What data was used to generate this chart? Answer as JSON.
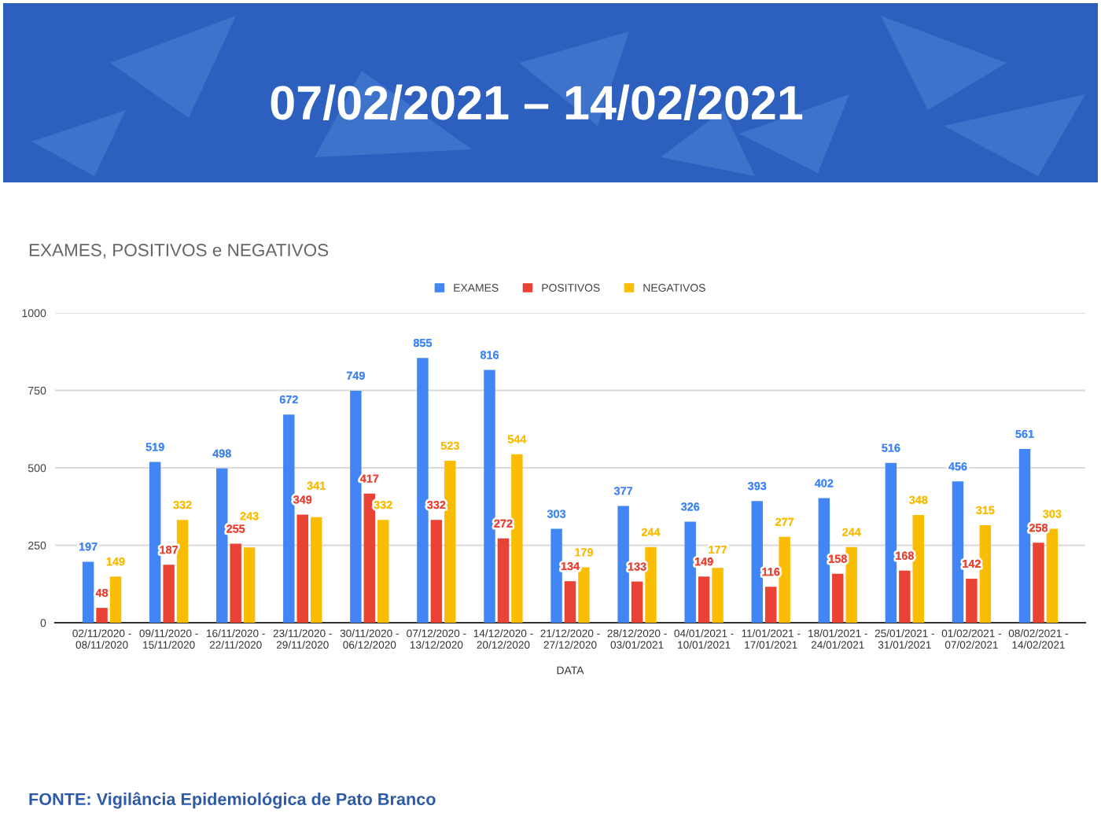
{
  "chart_data": {
    "type": "bar",
    "title": "07/02/2021 – 14/02/2021",
    "subtitle": "EXAMES, POSITIVOS e NEGATIVOS",
    "xlabel": "DATA",
    "annotations": [
      "FONTE: Vigilância Epidemiológica de Pato Branco"
    ],
    "categories": [
      "02/11/2020 -\n08/11/2020",
      "09/11/2020 -\n15/11/2020",
      "16/11/2020 -\n22/11/2020",
      "23/11/2020 -\n29/11/2020",
      "30/11/2020 -\n06/12/2020",
      "07/12/2020 -\n13/12/2020",
      "14/12/2020 -\n20/12/2020",
      "21/12/2020 -\n27/12/2020",
      "28/12/2020 -\n03/01/2021",
      "04/01/2021 -\n10/01/2021",
      "11/01/2021 -\n17/01/2021",
      "18/01/2021 -\n24/01/2021",
      "25/01/2021 -\n31/01/2021",
      "01/02/2021 -\n07/02/2021",
      "08/02/2021 -\n14/02/2021"
    ],
    "series": [
      {
        "name": "EXAMES",
        "color": "#4285f4",
        "values": [
          197,
          519,
          498,
          672,
          749,
          855,
          816,
          303,
          377,
          326,
          393,
          402,
          516,
          456,
          561
        ]
      },
      {
        "name": "POSITIVOS",
        "color": "#ea4335",
        "values": [
          48,
          187,
          255,
          349,
          417,
          332,
          272,
          134,
          133,
          149,
          116,
          158,
          168,
          142,
          258
        ]
      },
      {
        "name": "NEGATIVOS",
        "color": "#fbbc04",
        "values": [
          149,
          332,
          243,
          341,
          332,
          523,
          544,
          179,
          244,
          177,
          277,
          244,
          348,
          315,
          303
        ]
      }
    ],
    "ylim": [
      0,
      1000
    ],
    "yticks": [
      0,
      250,
      500,
      750,
      1000
    ],
    "grid": "y",
    "legend": "top",
    "data_labels": true
  }
}
